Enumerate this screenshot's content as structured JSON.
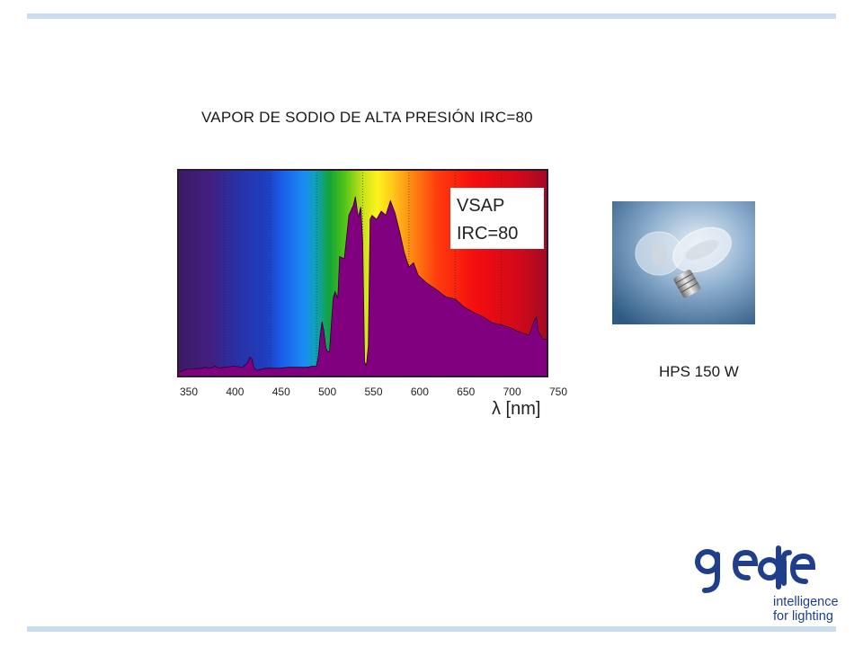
{
  "slide": {
    "title": "VAPOR DE SODIO DE ALTA PRESIÓN IRC=80",
    "photo_caption": "HPS 150 W",
    "accent_rule_color": "#c9dcf0"
  },
  "logo": {
    "wordmark": "gedre",
    "tagline_line1": "intelligence",
    "tagline_line2": "for lighting",
    "color": "#1f3f8c"
  },
  "chart_data": {
    "type": "area",
    "title": "",
    "label_box": [
      "VSAP",
      "IRC=80"
    ],
    "xlabel": "λ [nm]",
    "ylabel": "",
    "xlim": [
      350,
      750
    ],
    "ylim": [
      0,
      1
    ],
    "x_ticks": [
      350,
      400,
      450,
      500,
      550,
      600,
      650,
      700,
      750
    ],
    "grid": "vertical dotted",
    "fill_color": "#800080",
    "series": [
      {
        "x": [
          350,
          360,
          375,
          380,
          385,
          390,
          395,
          400,
          410,
          420,
          425,
          428,
          430,
          432,
          435,
          440,
          445,
          450,
          460,
          470,
          480,
          490,
          495,
          500,
          502,
          504,
          506,
          508,
          510,
          512,
          514,
          518,
          520,
          523,
          525,
          530,
          535,
          540,
          542,
          545,
          548,
          550,
          552,
          554,
          556,
          558,
          560,
          565,
          570,
          575,
          580,
          585,
          590,
          595,
          600,
          605,
          610,
          620,
          630,
          640,
          650,
          660,
          670,
          680,
          690,
          700,
          710,
          720,
          730,
          732,
          735,
          738,
          740,
          745,
          750
        ],
        "y": [
          0.02,
          0.035,
          0.04,
          0.045,
          0.04,
          0.05,
          0.04,
          0.045,
          0.05,
          0.045,
          0.065,
          0.095,
          0.085,
          0.045,
          0.03,
          0.035,
          0.04,
          0.04,
          0.04,
          0.045,
          0.045,
          0.045,
          0.05,
          0.05,
          0.1,
          0.2,
          0.265,
          0.22,
          0.14,
          0.12,
          0.12,
          0.38,
          0.41,
          0.38,
          0.58,
          0.57,
          0.78,
          0.83,
          0.87,
          0.77,
          0.82,
          0.65,
          0.07,
          0.055,
          0.15,
          0.76,
          0.78,
          0.76,
          0.8,
          0.78,
          0.85,
          0.79,
          0.7,
          0.6,
          0.53,
          0.55,
          0.49,
          0.45,
          0.42,
          0.385,
          0.375,
          0.335,
          0.31,
          0.29,
          0.26,
          0.25,
          0.235,
          0.215,
          0.2,
          0.22,
          0.265,
          0.29,
          0.22,
          0.18,
          0.18
        ]
      }
    ]
  }
}
